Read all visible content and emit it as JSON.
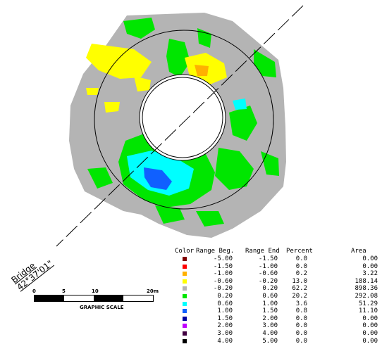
{
  "colors": {
    "gray": "#b4b4b4",
    "green": "#00e600",
    "yellow": "#ffff00",
    "orange": "#ffb000",
    "cyan": "#00ffff",
    "blue": "#1060ff",
    "darkblue": "#2040c0"
  },
  "bridge": {
    "name": "Bridge",
    "angle": "42°37'01\""
  },
  "legend": {
    "headers": {
      "color": "Color",
      "range_beg": "Range Beg.",
      "range_end": "Range End",
      "percent": "Percent",
      "area": "Area"
    },
    "rows": [
      {
        "color": "#800000",
        "beg": "-5.00",
        "end": "-1.50",
        "percent": "0.0",
        "area": "0.00"
      },
      {
        "color": "#ff0000",
        "beg": "-1.50",
        "end": "-1.00",
        "percent": "0.0",
        "area": "0.00"
      },
      {
        "color": "#ffb000",
        "beg": "-1.00",
        "end": "-0.60",
        "percent": "0.2",
        "area": "3.22"
      },
      {
        "color": "#ffff00",
        "beg": "-0.60",
        "end": "-0.20",
        "percent": "13.0",
        "area": "188.14"
      },
      {
        "color": "#b4b4b4",
        "beg": "-0.20",
        "end": "0.20",
        "percent": "62.2",
        "area": "898.36"
      },
      {
        "color": "#00e600",
        "beg": "0.20",
        "end": "0.60",
        "percent": "20.2",
        "area": "292.08"
      },
      {
        "color": "#00ffff",
        "beg": "0.60",
        "end": "1.00",
        "percent": "3.6",
        "area": "51.29"
      },
      {
        "color": "#1060ff",
        "beg": "1.00",
        "end": "1.50",
        "percent": "0.8",
        "area": "11.10"
      },
      {
        "color": "#0000a0",
        "beg": "1.50",
        "end": "2.00",
        "percent": "0.0",
        "area": "0.00"
      },
      {
        "color": "#c000ff",
        "beg": "2.00",
        "end": "3.00",
        "percent": "0.0",
        "area": "0.00"
      },
      {
        "color": "#400040",
        "beg": "3.00",
        "end": "4.00",
        "percent": "0.0",
        "area": "0.00"
      },
      {
        "color": "#000000",
        "beg": "4.00",
        "end": "5.00",
        "percent": "0.0",
        "area": "0.00"
      }
    ]
  },
  "scale": {
    "ticks": [
      "0",
      "5",
      "10",
      "20m"
    ],
    "caption": "GRAPHIC SCALE"
  }
}
